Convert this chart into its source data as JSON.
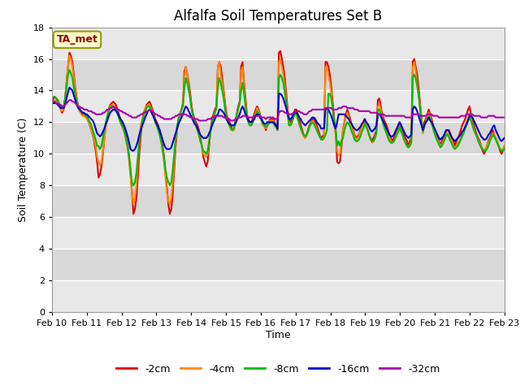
{
  "title": "Alfalfa Soil Temperatures Set B",
  "xlabel": "Time",
  "ylabel": "Soil Temperature (C)",
  "ylim": [
    0,
    18
  ],
  "yticks": [
    0,
    2,
    4,
    6,
    8,
    10,
    12,
    14,
    16,
    18
  ],
  "xtick_labels": [
    "Feb 10",
    "Feb 11",
    "Feb 12",
    "Feb 13",
    "Feb 14",
    "Feb 15",
    "Feb 16",
    "Feb 17",
    "Feb 18",
    "Feb 19",
    "Feb 20",
    "Feb 21",
    "Feb 22",
    "Feb 23"
  ],
  "annotation_text": "TA_met",
  "annotation_color": "#990000",
  "annotation_bg": "#ffffcc",
  "annotation_edge": "#999900",
  "colors": {
    "-2cm": "#dd0000",
    "-4cm": "#ff8800",
    "-8cm": "#00bb00",
    "-16cm": "#0000cc",
    "-32cm": "#aa00aa"
  },
  "line_width": 1.5,
  "background_color": "#ffffff",
  "plot_bg_light": "#e8e8e8",
  "plot_bg_dark": "#d8d8d8",
  "grid_color": "#ffffff",
  "title_fontsize": 12,
  "axis_label_fontsize": 9,
  "tick_fontsize": 8,
  "legend_fontsize": 9,
  "n_days": 13,
  "pts_per_day": 24,
  "series": {
    "-2cm": [
      13.3,
      13.5,
      13.6,
      13.5,
      13.3,
      13.0,
      12.8,
      12.6,
      12.8,
      13.5,
      14.5,
      15.5,
      16.4,
      16.2,
      15.8,
      15.0,
      14.2,
      13.5,
      13.0,
      12.8,
      12.6,
      12.5,
      12.5,
      12.4,
      12.3,
      12.1,
      11.8,
      11.5,
      11.2,
      10.8,
      10.2,
      9.5,
      8.5,
      8.7,
      9.2,
      10.0,
      11.0,
      11.8,
      12.3,
      12.8,
      13.1,
      13.2,
      13.3,
      13.2,
      13.1,
      12.8,
      12.5,
      12.2,
      12.0,
      11.8,
      11.5,
      11.0,
      10.5,
      9.8,
      8.8,
      7.5,
      6.2,
      6.5,
      7.2,
      8.5,
      10.0,
      11.2,
      12.0,
      12.5,
      12.8,
      13.1,
      13.2,
      13.3,
      13.1,
      12.8,
      12.5,
      12.2,
      12.0,
      11.8,
      11.5,
      11.0,
      10.5,
      9.8,
      8.8,
      7.8,
      6.8,
      6.2,
      6.5,
      7.5,
      9.0,
      10.5,
      11.5,
      12.2,
      12.5,
      12.8,
      13.2,
      15.2,
      15.5,
      15.0,
      14.5,
      13.8,
      13.0,
      12.5,
      12.2,
      12.0,
      11.8,
      11.5,
      11.0,
      10.5,
      9.8,
      9.5,
      9.2,
      9.5,
      10.5,
      11.5,
      12.2,
      12.5,
      12.8,
      13.0,
      15.5,
      15.8,
      15.5,
      14.8,
      14.0,
      13.2,
      12.5,
      12.2,
      12.0,
      11.8,
      11.5,
      11.5,
      12.0,
      12.5,
      13.0,
      13.3,
      15.5,
      15.8,
      14.5,
      13.5,
      12.5,
      12.2,
      12.0,
      12.0,
      12.2,
      12.5,
      12.8,
      13.0,
      12.8,
      12.5,
      12.2,
      12.0,
      11.8,
      11.5,
      11.8,
      12.0,
      12.2,
      12.2,
      12.2,
      12.0,
      11.8,
      11.5,
      16.4,
      16.5,
      16.0,
      15.5,
      14.8,
      13.8,
      12.8,
      12.2,
      12.0,
      12.2,
      12.5,
      12.8,
      12.8,
      12.5,
      12.2,
      11.8,
      11.5,
      11.2,
      11.0,
      11.2,
      11.5,
      11.8,
      12.0,
      12.2,
      12.2,
      12.0,
      11.8,
      11.5,
      11.2,
      11.0,
      11.1,
      11.2,
      15.8,
      15.8,
      15.5,
      15.0,
      14.2,
      13.2,
      12.2,
      11.5,
      9.5,
      9.4,
      9.5,
      10.5,
      11.5,
      12.0,
      12.5,
      12.8,
      12.5,
      12.2,
      11.8,
      11.5,
      11.2,
      11.0,
      11.1,
      11.2,
      11.5,
      11.8,
      12.0,
      12.2,
      11.8,
      11.5,
      11.2,
      11.0,
      10.8,
      11.0,
      11.2,
      11.5,
      13.4,
      13.5,
      13.0,
      12.5,
      12.2,
      12.0,
      11.8,
      11.5,
      11.2,
      11.0,
      10.8,
      11.0,
      11.2,
      11.5,
      11.8,
      12.0,
      11.8,
      11.5,
      11.2,
      11.0,
      10.8,
      10.5,
      10.8,
      11.0,
      15.8,
      16.0,
      15.5,
      15.0,
      14.2,
      13.2,
      12.2,
      11.5,
      12.0,
      12.2,
      12.5,
      12.8,
      12.5,
      12.2,
      11.8,
      11.5,
      11.2,
      11.0,
      10.8,
      10.5,
      10.8,
      11.0,
      11.2,
      11.5,
      11.5,
      11.5,
      11.2,
      11.0,
      10.8,
      10.5,
      10.8,
      11.0,
      11.2,
      11.5,
      11.8,
      12.0,
      12.2,
      12.5,
      12.8,
      13.0,
      12.5,
      12.2,
      11.8,
      11.5,
      11.2,
      11.0,
      10.8,
      10.5,
      10.2,
      10.0,
      10.2,
      10.5,
      10.8,
      11.0,
      11.2,
      11.5,
      11.2,
      11.0,
      10.8,
      10.5,
      10.2,
      10.0,
      10.2,
      10.5
    ],
    "-4cm": [
      13.2,
      13.3,
      13.4,
      13.3,
      13.2,
      13.0,
      12.8,
      12.7,
      12.9,
      13.5,
      14.5,
      15.5,
      16.2,
      16.0,
      15.5,
      14.8,
      14.0,
      13.4,
      12.9,
      12.7,
      12.5,
      12.4,
      12.4,
      12.3,
      12.2,
      12.0,
      11.8,
      11.5,
      11.2,
      10.9,
      10.5,
      9.8,
      9.5,
      9.2,
      9.5,
      10.2,
      11.0,
      11.8,
      12.2,
      12.7,
      13.0,
      13.1,
      13.1,
      13.0,
      12.9,
      12.6,
      12.3,
      12.0,
      11.8,
      11.6,
      11.3,
      10.8,
      10.3,
      9.5,
      8.5,
      7.5,
      6.8,
      7.2,
      8.0,
      9.5,
      10.8,
      11.8,
      12.2,
      12.6,
      12.9,
      13.0,
      13.1,
      13.1,
      12.9,
      12.6,
      12.3,
      12.0,
      11.8,
      11.5,
      11.2,
      10.8,
      10.2,
      9.5,
      8.5,
      7.5,
      7.0,
      6.8,
      7.2,
      8.2,
      9.5,
      10.8,
      11.5,
      12.0,
      12.4,
      12.8,
      13.0,
      14.8,
      15.5,
      15.0,
      14.2,
      13.5,
      12.8,
      12.3,
      12.0,
      11.8,
      11.5,
      11.2,
      10.8,
      10.5,
      10.0,
      9.9,
      9.8,
      10.0,
      10.8,
      11.5,
      12.0,
      12.3,
      12.6,
      12.9,
      15.5,
      15.8,
      15.0,
      14.5,
      13.8,
      13.0,
      12.3,
      12.0,
      11.8,
      11.5,
      11.5,
      11.5,
      11.8,
      12.3,
      12.8,
      13.2,
      15.2,
      15.5,
      14.2,
      13.2,
      12.3,
      12.0,
      11.8,
      11.8,
      12.0,
      12.3,
      12.6,
      12.9,
      12.7,
      12.4,
      12.1,
      11.8,
      11.7,
      11.6,
      11.8,
      12.0,
      12.1,
      12.1,
      12.1,
      11.9,
      11.7,
      11.5,
      15.8,
      16.0,
      15.5,
      15.0,
      14.3,
      13.4,
      12.5,
      11.8,
      11.8,
      12.0,
      12.3,
      12.6,
      12.5,
      12.2,
      11.9,
      11.6,
      11.3,
      11.1,
      11.0,
      11.1,
      11.4,
      11.7,
      11.9,
      12.1,
      12.0,
      11.8,
      11.6,
      11.3,
      11.1,
      10.9,
      10.9,
      11.0,
      15.5,
      15.5,
      15.0,
      14.5,
      13.8,
      12.8,
      11.8,
      11.2,
      10.2,
      9.9,
      10.0,
      10.8,
      11.5,
      11.9,
      12.3,
      12.6,
      12.3,
      12.0,
      11.7,
      11.4,
      11.1,
      10.9,
      11.0,
      11.1,
      11.4,
      11.7,
      11.9,
      12.1,
      11.8,
      11.5,
      11.2,
      10.9,
      10.7,
      10.8,
      11.0,
      11.3,
      13.0,
      13.1,
      12.8,
      12.3,
      12.0,
      11.8,
      11.5,
      11.2,
      11.0,
      10.8,
      10.7,
      10.8,
      11.0,
      11.3,
      11.5,
      11.8,
      11.5,
      11.2,
      10.9,
      10.7,
      10.5,
      10.4,
      10.6,
      10.8,
      15.5,
      15.8,
      15.2,
      14.5,
      13.8,
      12.9,
      11.9,
      11.3,
      11.8,
      12.0,
      12.3,
      12.6,
      12.3,
      12.0,
      11.7,
      11.4,
      11.1,
      10.9,
      10.7,
      10.5,
      10.6,
      10.8,
      11.0,
      11.3,
      11.3,
      11.2,
      11.0,
      10.8,
      10.5,
      10.4,
      10.5,
      10.7,
      10.8,
      11.0,
      11.2,
      11.5,
      11.7,
      12.0,
      12.3,
      12.5,
      12.2,
      11.9,
      11.6,
      11.3,
      11.1,
      10.9,
      10.7,
      10.5,
      10.3,
      10.2,
      10.3,
      10.5,
      10.7,
      10.9,
      11.1,
      11.3,
      11.2,
      11.0,
      10.8,
      10.5,
      10.3,
      10.2,
      10.3,
      10.5
    ],
    "-8cm": [
      13.5,
      13.6,
      13.6,
      13.5,
      13.4,
      13.2,
      13.0,
      12.9,
      13.0,
      13.5,
      14.2,
      15.0,
      15.3,
      15.1,
      14.8,
      14.2,
      13.7,
      13.3,
      13.0,
      12.8,
      12.7,
      12.6,
      12.5,
      12.5,
      12.4,
      12.2,
      12.0,
      11.8,
      11.5,
      11.2,
      10.9,
      10.5,
      10.5,
      10.3,
      10.5,
      11.0,
      11.5,
      12.0,
      12.4,
      12.7,
      12.9,
      13.0,
      13.0,
      12.9,
      12.8,
      12.5,
      12.3,
      12.0,
      11.8,
      11.6,
      11.3,
      10.9,
      10.5,
      9.8,
      9.0,
      8.2,
      8.0,
      8.2,
      8.8,
      9.8,
      10.8,
      11.5,
      12.0,
      12.4,
      12.7,
      12.9,
      13.0,
      13.0,
      12.8,
      12.5,
      12.3,
      12.0,
      11.8,
      11.5,
      11.2,
      10.8,
      10.3,
      9.8,
      9.0,
      8.5,
      8.2,
      8.0,
      8.2,
      9.0,
      10.0,
      11.0,
      11.8,
      12.2,
      12.5,
      12.8,
      13.0,
      14.2,
      14.8,
      14.5,
      14.0,
      13.5,
      12.8,
      12.4,
      12.0,
      11.8,
      11.5,
      11.2,
      10.8,
      10.5,
      10.2,
      10.1,
      10.0,
      10.2,
      10.8,
      11.5,
      12.0,
      12.3,
      12.6,
      12.9,
      14.2,
      14.8,
      14.5,
      14.0,
      13.5,
      12.8,
      12.2,
      12.0,
      11.8,
      11.6,
      11.5,
      11.6,
      12.0,
      12.5,
      12.9,
      13.2,
      14.0,
      14.5,
      13.8,
      13.0,
      12.3,
      12.0,
      11.8,
      11.8,
      12.0,
      12.2,
      12.4,
      12.7,
      12.6,
      12.3,
      12.1,
      11.9,
      11.8,
      11.7,
      11.8,
      11.9,
      12.0,
      12.0,
      12.0,
      11.8,
      11.7,
      11.5,
      14.8,
      15.0,
      14.8,
      14.5,
      13.9,
      13.2,
      12.5,
      11.8,
      11.8,
      12.0,
      12.3,
      12.5,
      12.5,
      12.2,
      11.9,
      11.6,
      11.4,
      11.2,
      11.1,
      11.2,
      11.4,
      11.7,
      11.9,
      12.0,
      11.9,
      11.7,
      11.5,
      11.3,
      11.1,
      10.9,
      10.9,
      11.0,
      11.2,
      11.5,
      13.8,
      13.8,
      13.5,
      12.8,
      12.0,
      11.5,
      10.5,
      10.8,
      10.5,
      10.8,
      11.0,
      11.5,
      11.8,
      12.0,
      11.9,
      11.7,
      11.4,
      11.2,
      10.9,
      10.8,
      10.8,
      10.9,
      11.1,
      11.4,
      11.6,
      11.9,
      11.7,
      11.5,
      11.2,
      10.9,
      10.8,
      10.8,
      11.0,
      11.3,
      12.8,
      12.8,
      12.5,
      12.1,
      11.8,
      11.5,
      11.3,
      11.0,
      10.8,
      10.7,
      10.7,
      10.8,
      11.0,
      11.2,
      11.4,
      11.7,
      11.4,
      11.2,
      10.9,
      10.7,
      10.5,
      10.4,
      10.5,
      10.7,
      14.8,
      15.0,
      14.8,
      14.3,
      13.7,
      12.9,
      12.0,
      11.4,
      11.8,
      12.0,
      12.2,
      12.4,
      12.2,
      11.9,
      11.6,
      11.3,
      11.0,
      10.8,
      10.6,
      10.4,
      10.5,
      10.7,
      10.9,
      11.2,
      11.2,
      11.0,
      10.8,
      10.6,
      10.4,
      10.3,
      10.4,
      10.5,
      10.7,
      10.9,
      11.1,
      11.3,
      11.6,
      11.8,
      12.1,
      12.3,
      12.1,
      11.8,
      11.5,
      11.3,
      11.1,
      10.8,
      10.6,
      10.4,
      10.3,
      10.2,
      10.2,
      10.3,
      10.5,
      10.8,
      11.0,
      11.2,
      11.1,
      10.9,
      10.7,
      10.5,
      10.3,
      10.2,
      10.2,
      10.3
    ],
    "-16cm": [
      13.2,
      13.2,
      13.2,
      13.2,
      13.1,
      13.0,
      12.9,
      12.9,
      12.9,
      13.1,
      13.5,
      13.9,
      14.2,
      14.1,
      14.0,
      13.7,
      13.4,
      13.1,
      12.9,
      12.8,
      12.7,
      12.6,
      12.6,
      12.5,
      12.5,
      12.4,
      12.3,
      12.2,
      12.1,
      11.9,
      11.6,
      11.3,
      11.2,
      11.1,
      11.2,
      11.4,
      11.6,
      11.9,
      12.1,
      12.4,
      12.6,
      12.7,
      12.8,
      12.8,
      12.7,
      12.6,
      12.4,
      12.2,
      12.1,
      11.9,
      11.7,
      11.4,
      11.1,
      10.7,
      10.3,
      10.2,
      10.2,
      10.3,
      10.5,
      10.8,
      11.2,
      11.5,
      11.8,
      12.0,
      12.3,
      12.5,
      12.7,
      12.8,
      12.7,
      12.5,
      12.3,
      12.1,
      11.9,
      11.7,
      11.5,
      11.2,
      10.9,
      10.6,
      10.4,
      10.3,
      10.3,
      10.3,
      10.4,
      10.7,
      11.0,
      11.3,
      11.6,
      11.9,
      12.1,
      12.3,
      12.5,
      12.8,
      13.0,
      12.9,
      12.7,
      12.5,
      12.3,
      12.1,
      11.9,
      11.8,
      11.6,
      11.4,
      11.2,
      11.1,
      11.0,
      11.0,
      11.0,
      11.1,
      11.3,
      11.5,
      11.8,
      12.0,
      12.2,
      12.4,
      12.5,
      12.8,
      12.8,
      12.7,
      12.6,
      12.4,
      12.2,
      12.0,
      11.9,
      11.8,
      11.8,
      11.8,
      11.9,
      12.1,
      12.3,
      12.5,
      12.8,
      13.0,
      12.8,
      12.5,
      12.3,
      12.1,
      12.0,
      12.0,
      12.1,
      12.2,
      12.4,
      12.5,
      12.5,
      12.3,
      12.2,
      12.0,
      11.9,
      11.9,
      12.0,
      12.0,
      12.0,
      12.0,
      12.0,
      11.9,
      11.8,
      11.6,
      13.8,
      13.8,
      13.7,
      13.5,
      13.2,
      12.9,
      12.5,
      12.2,
      12.2,
      12.3,
      12.5,
      12.6,
      12.6,
      12.5,
      12.3,
      12.2,
      12.0,
      11.9,
      11.8,
      11.9,
      12.0,
      12.1,
      12.2,
      12.3,
      12.3,
      12.2,
      12.0,
      11.9,
      11.8,
      11.6,
      11.6,
      11.6,
      12.8,
      12.9,
      12.8,
      12.6,
      12.4,
      12.1,
      11.8,
      11.6,
      12.0,
      12.5,
      12.5,
      12.5,
      12.5,
      12.5,
      12.4,
      12.3,
      12.2,
      12.0,
      11.9,
      11.7,
      11.6,
      11.5,
      11.5,
      11.6,
      11.7,
      11.9,
      12.0,
      12.2,
      12.0,
      11.9,
      11.7,
      11.5,
      11.4,
      11.5,
      11.6,
      11.8,
      12.5,
      12.5,
      12.4,
      12.2,
      12.0,
      11.8,
      11.6,
      11.4,
      11.2,
      11.1,
      11.1,
      11.2,
      11.4,
      11.6,
      11.8,
      12.0,
      11.8,
      11.6,
      11.4,
      11.2,
      11.1,
      11.0,
      11.1,
      11.2,
      12.8,
      13.0,
      12.9,
      12.7,
      12.4,
      12.1,
      11.8,
      11.5,
      11.8,
      12.0,
      12.1,
      12.3,
      12.1,
      12.0,
      11.8,
      11.6,
      11.4,
      11.2,
      11.0,
      10.9,
      11.0,
      11.1,
      11.3,
      11.5,
      11.5,
      11.4,
      11.2,
      11.0,
      10.9,
      10.8,
      10.9,
      11.0,
      11.1,
      11.2,
      11.4,
      11.5,
      11.7,
      11.9,
      12.1,
      12.4,
      12.4,
      12.3,
      12.1,
      11.9,
      11.7,
      11.5,
      11.3,
      11.1,
      11.0,
      10.9,
      10.9,
      11.0,
      11.2,
      11.3,
      11.5,
      11.7,
      11.8,
      11.5,
      11.3,
      11.1,
      10.9,
      10.8,
      10.9,
      11.0
    ],
    "-32cm": [
      13.3,
      13.3,
      13.3,
      13.2,
      13.2,
      13.1,
      13.1,
      13.0,
      13.0,
      13.1,
      13.2,
      13.3,
      13.4,
      13.4,
      13.3,
      13.3,
      13.2,
      13.1,
      13.0,
      13.0,
      12.9,
      12.9,
      12.8,
      12.8,
      12.8,
      12.7,
      12.7,
      12.7,
      12.6,
      12.6,
      12.5,
      12.5,
      12.5,
      12.5,
      12.5,
      12.6,
      12.6,
      12.7,
      12.8,
      12.8,
      12.9,
      12.9,
      13.0,
      12.9,
      12.9,
      12.8,
      12.8,
      12.7,
      12.7,
      12.6,
      12.6,
      12.5,
      12.5,
      12.4,
      12.4,
      12.3,
      12.3,
      12.3,
      12.3,
      12.4,
      12.4,
      12.5,
      12.5,
      12.6,
      12.6,
      12.7,
      12.7,
      12.8,
      12.7,
      12.7,
      12.6,
      12.5,
      12.5,
      12.4,
      12.4,
      12.3,
      12.3,
      12.2,
      12.2,
      12.2,
      12.2,
      12.2,
      12.2,
      12.3,
      12.3,
      12.4,
      12.4,
      12.5,
      12.5,
      12.5,
      12.5,
      12.5,
      12.5,
      12.4,
      12.4,
      12.3,
      12.3,
      12.2,
      12.2,
      12.2,
      12.2,
      12.1,
      12.1,
      12.1,
      12.1,
      12.1,
      12.1,
      12.2,
      12.2,
      12.2,
      12.3,
      12.3,
      12.4,
      12.4,
      12.4,
      12.4,
      12.4,
      12.4,
      12.3,
      12.3,
      12.2,
      12.2,
      12.2,
      12.1,
      12.1,
      12.1,
      12.2,
      12.2,
      12.3,
      12.3,
      12.3,
      12.4,
      12.4,
      12.4,
      12.3,
      12.3,
      12.3,
      12.3,
      12.3,
      12.4,
      12.4,
      12.4,
      12.4,
      12.4,
      12.3,
      12.3,
      12.3,
      12.2,
      12.3,
      12.3,
      12.3,
      12.3,
      12.3,
      12.2,
      12.2,
      12.2,
      12.6,
      12.7,
      12.7,
      12.7,
      12.6,
      12.6,
      12.5,
      12.5,
      12.5,
      12.5,
      12.6,
      12.6,
      12.7,
      12.7,
      12.7,
      12.6,
      12.6,
      12.5,
      12.5,
      12.5,
      12.6,
      12.7,
      12.7,
      12.8,
      12.8,
      12.8,
      12.8,
      12.8,
      12.8,
      12.8,
      12.8,
      12.8,
      12.9,
      12.9,
      12.9,
      12.9,
      12.9,
      12.8,
      12.8,
      12.8,
      12.8,
      12.9,
      12.9,
      12.9,
      13.0,
      13.0,
      13.0,
      12.9,
      12.9,
      12.9,
      12.9,
      12.9,
      12.8,
      12.8,
      12.8,
      12.7,
      12.7,
      12.7,
      12.7,
      12.7,
      12.7,
      12.7,
      12.7,
      12.6,
      12.6,
      12.6,
      12.6,
      12.6,
      12.5,
      12.5,
      12.5,
      12.5,
      12.5,
      12.4,
      12.4,
      12.4,
      12.4,
      12.4,
      12.4,
      12.4,
      12.4,
      12.4,
      12.4,
      12.4,
      12.4,
      12.4,
      12.4,
      12.3,
      12.3,
      12.3,
      12.3,
      12.3,
      12.5,
      12.5,
      12.5,
      12.5,
      12.5,
      12.4,
      12.4,
      12.4,
      12.4,
      12.4,
      12.5,
      12.5,
      12.5,
      12.5,
      12.4,
      12.4,
      12.4,
      12.4,
      12.3,
      12.3,
      12.3,
      12.3,
      12.3,
      12.3,
      12.3,
      12.3,
      12.3,
      12.3,
      12.3,
      12.3,
      12.3,
      12.3,
      12.3,
      12.4,
      12.4,
      12.4,
      12.4,
      12.5,
      12.5,
      12.5,
      12.5,
      12.5,
      12.4,
      12.4,
      12.4,
      12.4,
      12.4,
      12.3,
      12.3,
      12.3,
      12.3,
      12.3,
      12.4,
      12.4,
      12.4,
      12.4,
      12.4,
      12.3,
      12.3,
      12.3,
      12.3,
      12.3,
      12.3,
      12.3
    ]
  }
}
